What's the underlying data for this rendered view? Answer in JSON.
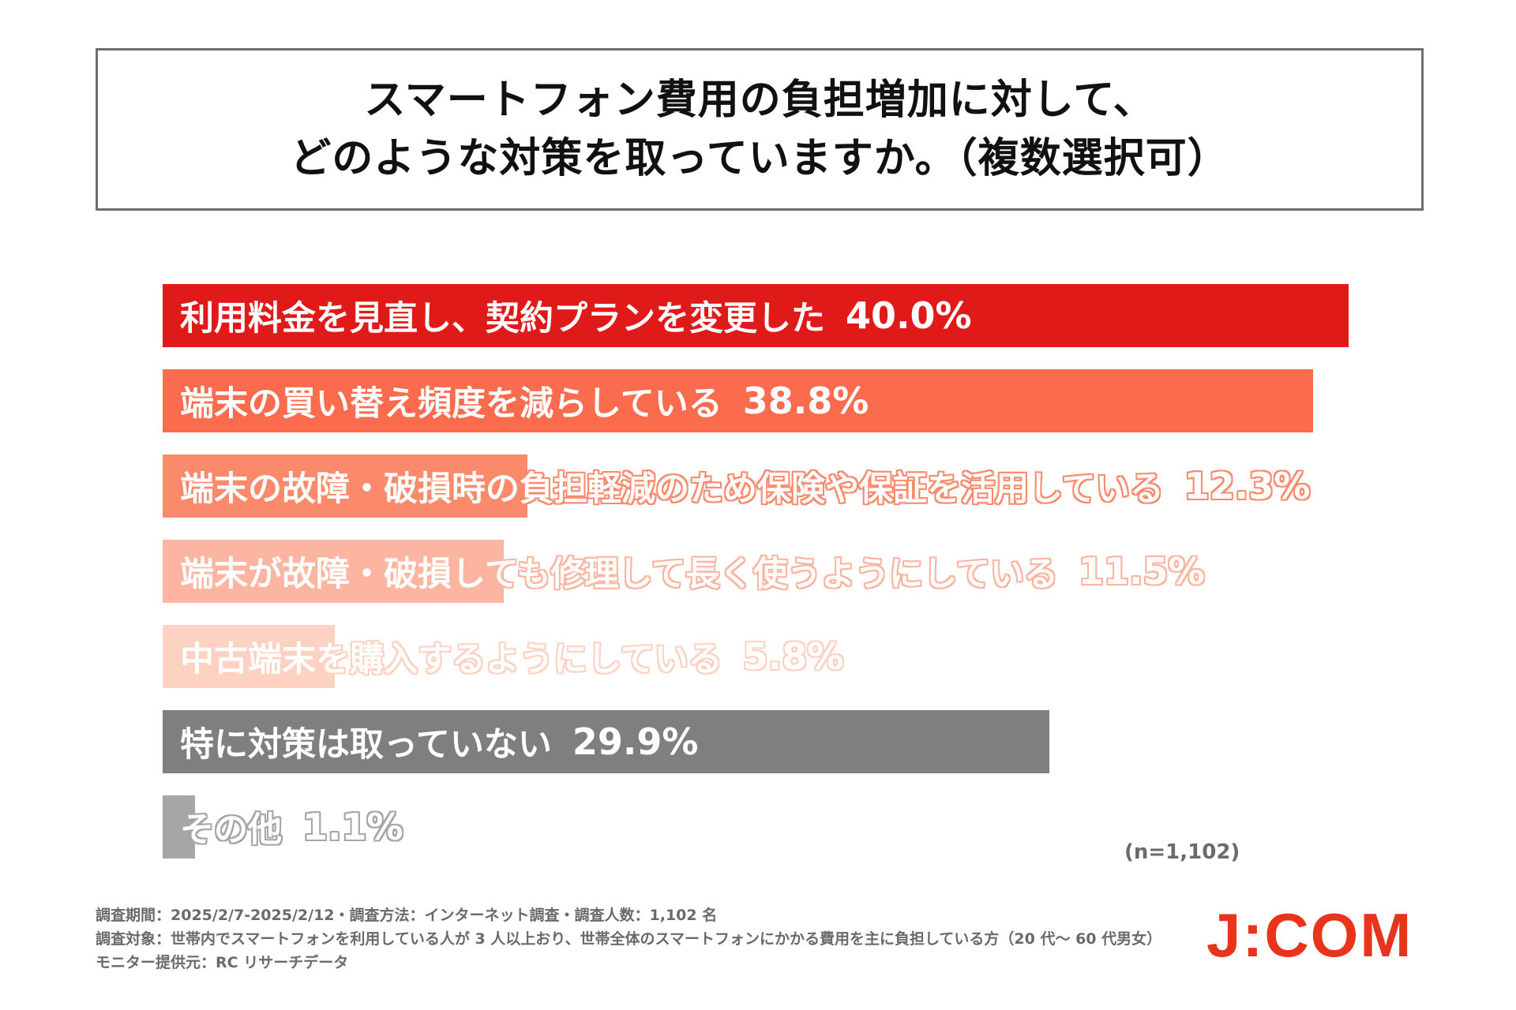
{
  "title": {
    "line1": "スマートフォン費用の負担増加に対して、",
    "line2": "どのような対策を取っていますか。（複数選択可）"
  },
  "chart_data": {
    "type": "bar",
    "orientation": "horizontal",
    "value_max": 40.0,
    "categories": [
      "利用料金を見直し、契約プランを変更した",
      "端末の買い替え頻度を減らしている",
      "端末の故障・破損時の負担軽減のため保険や保証を活用している",
      "端末が故障・破損しても修理して長く使うようにしている",
      "中古端末を購入するようにしている",
      "特に対策は取っていない",
      "その他"
    ],
    "values": [
      40.0,
      38.8,
      12.3,
      11.5,
      5.8,
      29.9,
      1.1
    ],
    "value_labels": [
      "40.0%",
      "38.8%",
      "12.3%",
      "11.5%",
      "5.8%",
      "29.9%",
      "1.1%"
    ],
    "colors": [
      "#e01919",
      "#fb6c4f",
      "#fb8a6c",
      "#fcb5a0",
      "#fdd2c3",
      "#7f7f7f",
      "#a6a6a6"
    ],
    "sample_size": "(n=1,102)"
  },
  "footnotes": [
    "調査期間：2025/2/7-2025/2/12・調査方法：インターネット調査・調査人数：1,102 名",
    "調査対象：世帯内でスマートフォンを利用している人が 3 人以上おり、世帯全体のスマートフォンにかかる費用を主に負担している方（20 代～ 60 代男女）",
    "モニター提供元：RC リサーチデータ"
  ],
  "logo": "J:COM"
}
